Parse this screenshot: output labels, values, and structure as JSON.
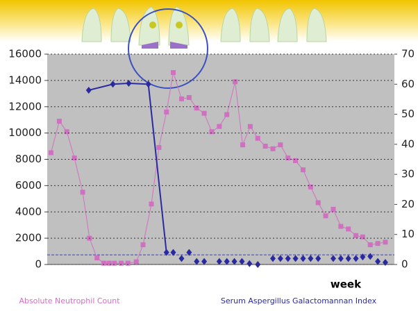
{
  "chart_data": {
    "type": "line",
    "x_label": "week",
    "xlim": [
      0,
      46
    ],
    "ylim": [
      0,
      16000
    ],
    "yticks": [
      0,
      2000,
      4000,
      6000,
      8000,
      10000,
      12000,
      14000,
      16000
    ],
    "y2lim": [
      0,
      70
    ],
    "y2ticks": [
      0,
      10,
      20,
      30,
      40,
      50,
      60,
      70
    ],
    "grid": true,
    "reference_line": {
      "value": 3.2,
      "axis": "y2",
      "color": "#3a3ad0"
    },
    "series": [
      {
        "name": "Absolute Neutrophil Count",
        "color": "#d070c0",
        "axis": "y",
        "x": [
          0.5,
          1.6,
          2.6,
          3.6,
          4.7,
          5.6,
          6.6,
          7.5,
          8.2,
          8.9,
          9.8,
          10.7,
          11.8,
          12.7,
          13.8,
          14.8,
          15.8,
          16.7,
          17.8,
          18.8,
          19.8,
          20.8,
          21.8,
          22.8,
          23.8,
          24.9,
          25.9,
          26.9,
          27.9,
          28.9,
          29.9,
          30.9,
          31.9,
          32.9,
          33.9,
          34.9,
          35.9,
          36.9,
          37.9,
          38.9,
          39.9,
          40.9,
          41.8,
          42.8,
          43.8,
          44.8
        ],
        "values": [
          8500,
          10900,
          10100,
          8100,
          5500,
          2000,
          500,
          100,
          100,
          100,
          100,
          100,
          200,
          1500,
          4600,
          8900,
          11600,
          14600,
          12600,
          12700,
          11900,
          11500,
          10100,
          10500,
          11400,
          13900,
          9100,
          10500,
          9600,
          9000,
          8800,
          9100,
          8100,
          7900,
          7200,
          5900,
          4700,
          3700,
          4200,
          2900,
          2700,
          2200,
          2100,
          1500,
          1600,
          1700
        ]
      },
      {
        "name": "Serum Aspergillus Galactomannan Index",
        "color": "#2a2aa0",
        "axis": "y2",
        "x": [
          5.5,
          8.7,
          10.8,
          13.4,
          15.8,
          16.7,
          17.8,
          18.8,
          19.8,
          20.8,
          22.8,
          23.8,
          24.8,
          25.8,
          26.8,
          27.9,
          29.9,
          30.9,
          31.9,
          32.9,
          33.9,
          34.9,
          35.9,
          37.9,
          38.9,
          39.9,
          40.9,
          41.8,
          42.8,
          43.8,
          44.8
        ],
        "values": [
          58,
          60,
          60.3,
          60,
          4,
          4,
          2,
          4,
          1,
          1,
          1,
          1,
          1,
          1,
          0.3,
          0,
          2,
          2,
          2,
          2,
          2,
          2,
          2,
          2,
          2,
          2,
          2,
          2.5,
          2.7,
          1,
          0.7
        ]
      }
    ]
  }
}
